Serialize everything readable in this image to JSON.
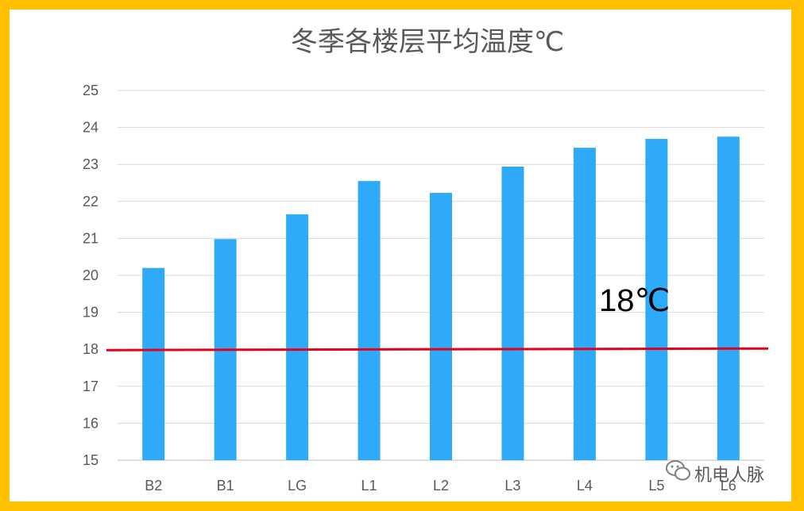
{
  "chart_data": {
    "type": "bar",
    "title": "冬季各楼层平均温度℃",
    "categories": [
      "B2",
      "B1",
      "LG",
      "L1",
      "L2",
      "L3",
      "L4",
      "L5",
      "L6"
    ],
    "values": [
      20.2,
      20.98,
      21.65,
      22.55,
      22.23,
      22.94,
      23.45,
      23.69,
      23.75
    ],
    "ylim": [
      15,
      25
    ],
    "yticks": [
      "15",
      "16",
      "17",
      "18",
      "19",
      "20",
      "21",
      "22",
      "23",
      "24",
      "25"
    ],
    "grid": true,
    "bar_color": "#2EAAF9",
    "reference_line": {
      "value": 18,
      "label": "18℃",
      "color": "#E5001A"
    }
  },
  "page": {
    "border_color": "#FFC000",
    "watermark": "机电人脉",
    "watermark_icon": "wechat-icon"
  }
}
